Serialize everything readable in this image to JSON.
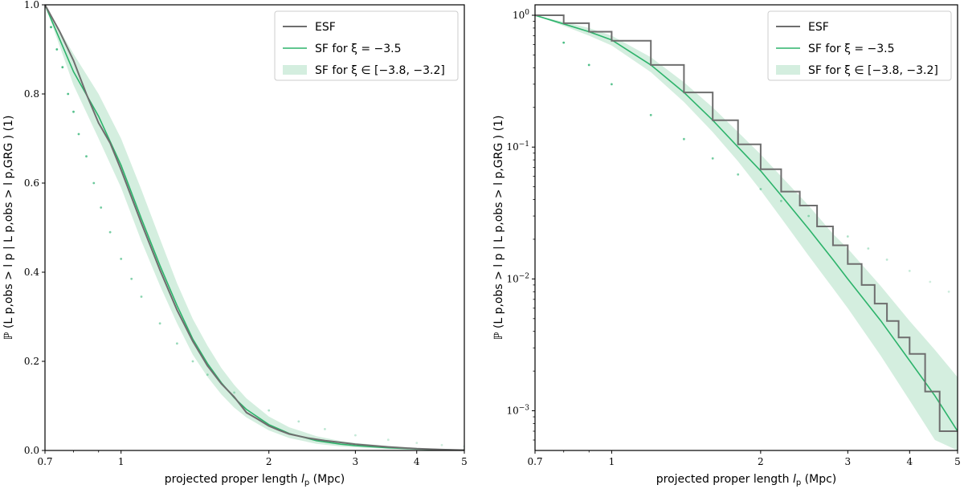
{
  "colors": {
    "esf": "#6e6e6e",
    "sf": "#2db36b",
    "band": "#d4eedf",
    "dots": "#3fb97d"
  },
  "chart_data": [
    {
      "type": "line",
      "xscale": "log",
      "yscale": "linear",
      "xlim": [
        0.7,
        5
      ],
      "ylim": [
        0,
        1
      ],
      "xticks": [
        0.7,
        1,
        2,
        3,
        4,
        5
      ],
      "xticklabels": [
        "0.7",
        "1",
        "2",
        "3",
        "4",
        "5"
      ],
      "yticks": [
        0,
        0.2,
        0.4,
        0.6,
        0.8,
        1
      ],
      "yticklabels": [
        "0.0",
        "0.2",
        "0.4",
        "0.6",
        "0.8",
        "1.0"
      ],
      "xlabel": "projected proper length",
      "xlabel_math": "l",
      "xlabel_sub": "p",
      "xlabel_unit": "(Mpc)",
      "ylabel": "ℙ (L p,obs > l p | L p,obs > l p,GRG ) (1)",
      "legend": {
        "position": "top-right",
        "entries": [
          "ESF",
          "SF for ξ = −3.5",
          "SF for ξ ∈ [−3.8, −3.2]"
        ]
      },
      "series": [
        {
          "name": "ESF",
          "style": "line",
          "x": [
            0.7,
            0.75,
            0.8,
            0.85,
            0.9,
            0.95,
            1.0,
            1.1,
            1.2,
            1.3,
            1.4,
            1.5,
            1.6,
            1.7,
            1.8,
            1.9,
            2.0,
            2.1,
            2.2,
            2.4,
            2.6,
            2.8,
            3.0,
            3.5,
            4.0,
            4.5,
            5.0
          ],
          "y": [
            1.0,
            0.94,
            0.875,
            0.8,
            0.735,
            0.69,
            0.63,
            0.51,
            0.405,
            0.315,
            0.245,
            0.19,
            0.15,
            0.12,
            0.085,
            0.07,
            0.055,
            0.045,
            0.037,
            0.028,
            0.022,
            0.018,
            0.014,
            0.008,
            0.004,
            0.002,
            0.0008
          ]
        },
        {
          "name": "SF for ξ = −3.5",
          "style": "line",
          "x": [
            0.7,
            0.8,
            0.9,
            1.0,
            1.1,
            1.2,
            1.3,
            1.4,
            1.5,
            1.6,
            1.7,
            1.8,
            2.0,
            2.2,
            2.5,
            2.8,
            3.0,
            3.5,
            4.0,
            4.5,
            5.0
          ],
          "y": [
            1.0,
            0.85,
            0.75,
            0.64,
            0.52,
            0.415,
            0.325,
            0.25,
            0.195,
            0.152,
            0.118,
            0.092,
            0.058,
            0.038,
            0.022,
            0.014,
            0.011,
            0.006,
            0.0032,
            0.0016,
            0.0007
          ]
        },
        {
          "name": "SF for ξ ∈ [−3.8, −3.2]",
          "style": "band",
          "x": [
            0.7,
            0.8,
            0.9,
            1.0,
            1.1,
            1.2,
            1.3,
            1.4,
            1.5,
            1.6,
            1.7,
            1.8,
            2.0,
            2.2,
            2.5,
            2.8,
            3.0,
            3.5,
            4.0,
            4.5,
            5.0
          ],
          "y_low": [
            1.0,
            0.82,
            0.7,
            0.59,
            0.47,
            0.37,
            0.285,
            0.215,
            0.165,
            0.126,
            0.096,
            0.074,
            0.045,
            0.028,
            0.015,
            0.009,
            0.007,
            0.0035,
            0.0018,
            0.0009,
            0.0004
          ],
          "y_high": [
            1.0,
            0.89,
            0.8,
            0.7,
            0.585,
            0.475,
            0.375,
            0.295,
            0.235,
            0.185,
            0.147,
            0.117,
            0.076,
            0.052,
            0.032,
            0.021,
            0.017,
            0.01,
            0.0058,
            0.0034,
            0.0018
          ]
        },
        {
          "name": "",
          "style": "dots",
          "x": [
            0.72,
            0.74,
            0.76,
            0.78,
            0.8,
            0.82,
            0.85,
            0.88,
            0.91,
            0.95,
            1.0,
            1.05,
            1.1,
            1.2,
            1.3,
            1.4,
            1.5,
            1.7,
            2.0,
            2.3,
            2.6,
            3.0,
            3.5,
            4.0,
            4.5,
            5.0
          ],
          "y": [
            0.95,
            0.9,
            0.86,
            0.8,
            0.76,
            0.71,
            0.66,
            0.6,
            0.545,
            0.49,
            0.43,
            0.385,
            0.345,
            0.285,
            0.24,
            0.2,
            0.17,
            0.13,
            0.09,
            0.065,
            0.048,
            0.034,
            0.024,
            0.017,
            0.012,
            0.009
          ]
        }
      ]
    },
    {
      "type": "line",
      "xscale": "log",
      "yscale": "log",
      "xlim": [
        0.7,
        5
      ],
      "ylim": [
        0.0005,
        1.2
      ],
      "xticks": [
        0.7,
        1,
        2,
        3,
        4,
        5
      ],
      "xticklabels": [
        "0.7",
        "1",
        "2",
        "3",
        "4",
        "5"
      ],
      "yticks": [
        0.001,
        0.01,
        0.1,
        1
      ],
      "yticklabels": [
        "10^-3",
        "10^-2",
        "10^-1",
        "10^0"
      ],
      "xlabel": "projected proper length",
      "xlabel_math": "l",
      "xlabel_sub": "p",
      "xlabel_unit": "(Mpc)",
      "ylabel": "ℙ (L p,obs > l p | L p,obs > l p,GRG ) (1)",
      "legend": {
        "position": "top-right",
        "entries": [
          "ESF",
          "SF for ξ = −3.5",
          "SF for ξ ∈ [−3.8, −3.2]"
        ]
      },
      "series": [
        {
          "name": "ESF",
          "style": "step",
          "x": [
            0.7,
            0.8,
            0.9,
            1.0,
            1.2,
            1.4,
            1.6,
            1.8,
            2.0,
            2.2,
            2.4,
            2.6,
            2.8,
            3.0,
            3.2,
            3.4,
            3.6,
            3.8,
            4.0,
            4.3,
            4.6,
            5.0
          ],
          "y": [
            1.0,
            0.87,
            0.75,
            0.64,
            0.42,
            0.26,
            0.16,
            0.105,
            0.068,
            0.046,
            0.036,
            0.025,
            0.018,
            0.013,
            0.009,
            0.0065,
            0.0048,
            0.0036,
            0.0027,
            0.0014,
            0.0007,
            0.0007
          ]
        },
        {
          "name": "SF for ξ = −3.5",
          "style": "line",
          "x": [
            0.7,
            0.8,
            0.9,
            1.0,
            1.2,
            1.4,
            1.6,
            1.8,
            2.0,
            2.2,
            2.5,
            2.8,
            3.0,
            3.5,
            4.0,
            4.5,
            5.0
          ],
          "y": [
            1.0,
            0.86,
            0.75,
            0.65,
            0.42,
            0.26,
            0.16,
            0.1,
            0.066,
            0.043,
            0.024,
            0.014,
            0.01,
            0.0048,
            0.0024,
            0.0013,
            0.0007
          ]
        },
        {
          "name": "SF for ξ ∈ [−3.8, −3.2]",
          "style": "band",
          "x": [
            0.7,
            0.8,
            0.9,
            1.0,
            1.2,
            1.4,
            1.6,
            1.8,
            2.0,
            2.2,
            2.5,
            2.8,
            3.0,
            3.5,
            4.0,
            4.5,
            5.0
          ],
          "y_low": [
            1.0,
            0.83,
            0.7,
            0.59,
            0.37,
            0.22,
            0.13,
            0.078,
            0.047,
            0.029,
            0.015,
            0.0085,
            0.006,
            0.0026,
            0.0012,
            0.0006,
            0.0003
          ],
          "y_high": [
            1.0,
            0.89,
            0.8,
            0.7,
            0.48,
            0.31,
            0.2,
            0.13,
            0.088,
            0.06,
            0.036,
            0.022,
            0.017,
            0.0088,
            0.0048,
            0.0029,
            0.0018
          ]
        },
        {
          "name": "",
          "style": "dots",
          "x": [
            0.7,
            0.8,
            0.9,
            1.0,
            1.2,
            1.4,
            1.6,
            1.8,
            2.0,
            2.2,
            2.5,
            2.8,
            3.0,
            3.3,
            3.6,
            4.0,
            4.4,
            4.8
          ],
          "y": [
            1.0,
            0.62,
            0.42,
            0.3,
            0.175,
            0.115,
            0.082,
            0.062,
            0.048,
            0.039,
            0.03,
            0.024,
            0.021,
            0.017,
            0.014,
            0.0115,
            0.0095,
            0.008
          ]
        }
      ]
    }
  ]
}
